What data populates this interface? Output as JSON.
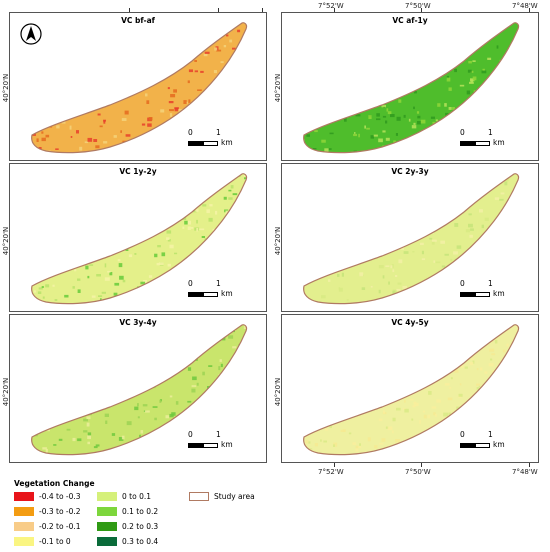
{
  "figure": {
    "top_lon_labels": [
      "7°52'W",
      "7°50'W",
      "7°48'W"
    ],
    "bottom_lon_labels": [
      "7°52'W",
      "7°50'W",
      "7°48'W"
    ],
    "lat_label": "40°20'N"
  },
  "panels": [
    {
      "title": "VC bf-af",
      "fill": "#f2b24a",
      "speck_colors": [
        "#e8402a",
        "#f5d27a",
        "#e56a1e"
      ],
      "north_arrow": true
    },
    {
      "title": "VC af-1y",
      "fill": "#4fbd2c",
      "speck_colors": [
        "#2f9a1e",
        "#b6e35a",
        "#8fd63a"
      ],
      "north_arrow": false
    },
    {
      "title": "VC 1y-2y",
      "fill": "#e4f08a",
      "speck_colors": [
        "#66cb3a",
        "#f6f3a6",
        "#b9e36a"
      ],
      "north_arrow": false
    },
    {
      "title": "VC 2y-3y",
      "fill": "#e3ef8e",
      "speck_colors": [
        "#f3f0a6",
        "#c6e47a",
        "#d8ea84"
      ],
      "north_arrow": false
    },
    {
      "title": "VC 3y-4y",
      "fill": "#c9e56c",
      "speck_colors": [
        "#6ec93e",
        "#ecef9a",
        "#9cd454"
      ],
      "north_arrow": false
    },
    {
      "title": "VC 4y-5y",
      "fill": "#eff0a0",
      "speck_colors": [
        "#f9ee9c",
        "#d9ea86",
        "#f6ea92"
      ],
      "north_arrow": false
    }
  ],
  "scale": {
    "zero": "0",
    "one": "1",
    "unit": "km"
  },
  "legend": {
    "title": "Vegetation Change",
    "items": [
      {
        "label": "-0.4 to -0.3",
        "color": "#e8141a"
      },
      {
        "label": "-0.3 to -0.2",
        "color": "#f39c12"
      },
      {
        "label": "-0.2 to -0.1",
        "color": "#f8cc88"
      },
      {
        "label": "-0.1 to 0",
        "color": "#faf582"
      },
      {
        "label": "0 to 0.1",
        "color": "#d5f07a"
      },
      {
        "label": "0.1 to 0.2",
        "color": "#7dd63c"
      },
      {
        "label": "0.2 to 0.3",
        "color": "#2f9a14"
      },
      {
        "label": "0.3 to 0.4",
        "color": "#0a6b3a"
      }
    ],
    "study_area_label": "Study area",
    "study_area_color": "#b07a62"
  }
}
